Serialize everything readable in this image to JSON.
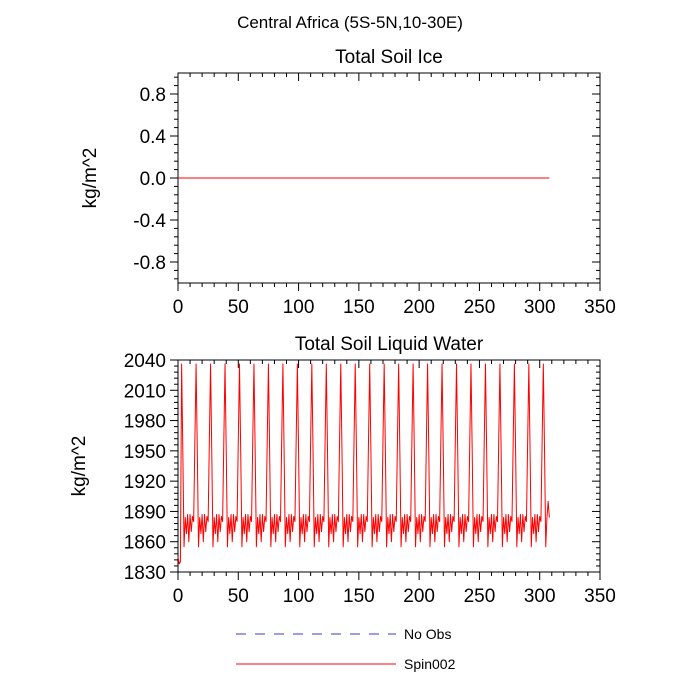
{
  "figure_title": "Central Africa (5S-5N,10-30E)",
  "legend": {
    "entries": [
      {
        "label": "No Obs",
        "color": "#3b3bcc",
        "style": "dashed"
      },
      {
        "label": "Spin002",
        "color": "#ff0000",
        "style": "solid"
      }
    ]
  },
  "chart_data": [
    {
      "type": "line",
      "title": "Total Soil Ice",
      "xlabel": "",
      "ylabel": "kg/m^2",
      "xlim": [
        0,
        350
      ],
      "ylim": [
        -1.0,
        1.0
      ],
      "xticks": [
        0,
        50,
        100,
        150,
        200,
        250,
        300,
        350
      ],
      "xtick_labels": [
        "0",
        "50",
        "100",
        "150",
        "200",
        "250",
        "300",
        "350"
      ],
      "yticks": [
        -0.8,
        -0.4,
        0.0,
        0.4,
        0.8
      ],
      "ytick_labels": [
        "-0.8",
        "-0.4",
        "0.0",
        "0.4",
        "0.8"
      ],
      "series": [
        {
          "name": "Spin002",
          "color": "#ff0000",
          "x": [
            0,
            308
          ],
          "y": [
            0.0,
            0.0
          ]
        }
      ]
    },
    {
      "type": "line",
      "title": "Total Soil Liquid Water",
      "xlabel": "",
      "ylabel": "kg/m^2",
      "xlim": [
        0,
        350
      ],
      "ylim": [
        1830,
        2040
      ],
      "xticks": [
        0,
        50,
        100,
        150,
        200,
        250,
        300,
        350
      ],
      "xtick_labels": [
        "0",
        "50",
        "100",
        "150",
        "200",
        "250",
        "300",
        "350"
      ],
      "yticks": [
        1830,
        1860,
        1890,
        1920,
        1950,
        1980,
        2010,
        2040
      ],
      "ytick_labels": [
        "1830",
        "1860",
        "1890",
        "1920",
        "1950",
        "1980",
        "2010",
        "2040"
      ],
      "series": [
        {
          "name": "Spin002",
          "color": "#ff0000",
          "cycle_length": 12,
          "cycle_shape": [
            2036,
            1950,
            1855,
            1884,
            1868,
            1887,
            1860,
            1887,
            1870,
            1885,
            1880,
            1960
          ],
          "start_x": 3,
          "x": [
            0,
            1,
            2,
            3,
            306,
            307,
            308
          ],
          "y": [
            1845,
            1838,
            1840,
            2036,
            2036,
            1900,
            1884
          ]
        }
      ]
    }
  ]
}
